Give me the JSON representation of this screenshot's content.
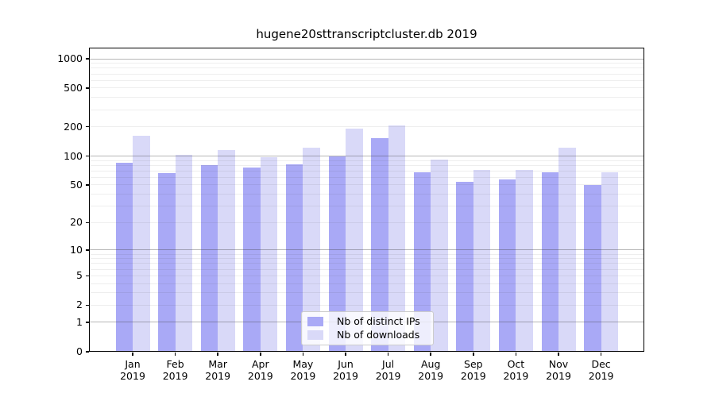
{
  "chart_data": {
    "type": "bar",
    "title": "hugene20sttranscriptcluster.db 2019",
    "categories": [
      "Jan",
      "Feb",
      "Mar",
      "Apr",
      "May",
      "Jun",
      "Jul",
      "Aug",
      "Sep",
      "Oct",
      "Nov",
      "Dec"
    ],
    "xtick_year": "2019",
    "series": [
      {
        "name": "Nb of distinct IPs",
        "color": "#a9a9f6",
        "values": [
          85,
          66,
          81,
          76,
          82,
          100,
          152,
          68,
          54,
          57,
          68,
          50
        ]
      },
      {
        "name": "Nb of downloads",
        "color": "#d9d9f8",
        "values": [
          163,
          103,
          116,
          97,
          121,
          192,
          208,
          91,
          72,
          72,
          122,
          68
        ]
      }
    ],
    "yscale": "log1p",
    "ylabel": "",
    "xlabel": "",
    "yticks": [
      0,
      1,
      2,
      5,
      10,
      20,
      50,
      100,
      200,
      500,
      1000
    ],
    "ylim": [
      0,
      1280
    ],
    "grid": {
      "major": [
        1,
        10,
        100,
        1000
      ],
      "minor_per_decade": [
        2,
        3,
        4,
        5,
        6,
        7,
        8,
        9
      ]
    },
    "legend_position": "lower center inside"
  },
  "colors": {
    "major_grid": "rgba(64,64,64,0.38)",
    "minor_grid": "rgba(64,64,64,0.09)",
    "spine": "#000000",
    "background": "#ffffff",
    "legend_border": "#cccccc"
  }
}
